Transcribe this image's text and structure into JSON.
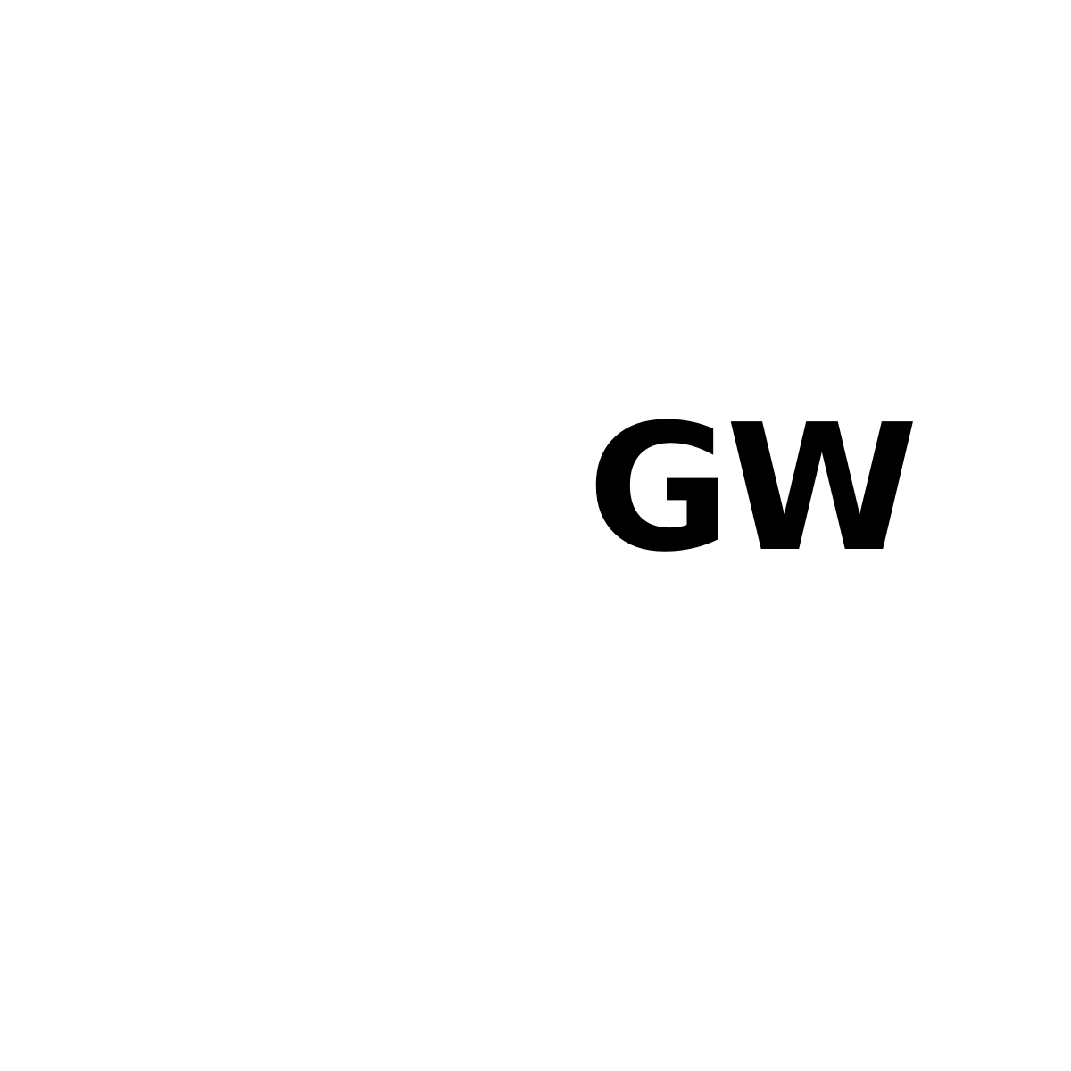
{
  "monogram": {
    "text": "GW",
    "color": "#000000"
  },
  "background": {
    "color": "#ffffff"
  }
}
